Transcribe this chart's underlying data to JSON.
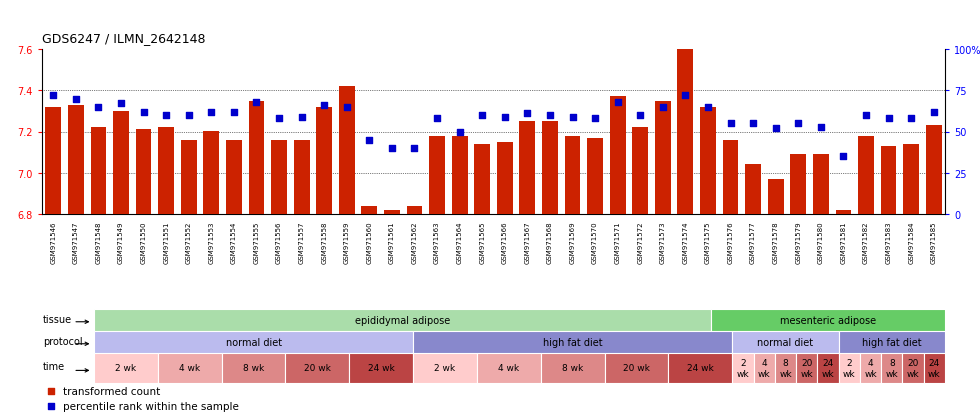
{
  "title": "GDS6247 / ILMN_2642148",
  "ylim": [
    6.8,
    7.6
  ],
  "yticks_left": [
    6.8,
    7.0,
    7.2,
    7.4,
    7.6
  ],
  "yticks_right": [
    0,
    25,
    50,
    75,
    100
  ],
  "samples": [
    "GSM971546",
    "GSM971547",
    "GSM971548",
    "GSM971549",
    "GSM971550",
    "GSM971551",
    "GSM971552",
    "GSM971553",
    "GSM971554",
    "GSM971555",
    "GSM971556",
    "GSM971557",
    "GSM971558",
    "GSM971559",
    "GSM971560",
    "GSM971561",
    "GSM971562",
    "GSM971563",
    "GSM971564",
    "GSM971565",
    "GSM971566",
    "GSM971567",
    "GSM971568",
    "GSM971569",
    "GSM971570",
    "GSM971571",
    "GSM971572",
    "GSM971573",
    "GSM971574",
    "GSM971575",
    "GSM971576",
    "GSM971577",
    "GSM971578",
    "GSM971579",
    "GSM971580",
    "GSM971581",
    "GSM971582",
    "GSM971583",
    "GSM971584",
    "GSM971585"
  ],
  "bar_values": [
    7.32,
    7.33,
    7.22,
    7.3,
    7.21,
    7.22,
    7.16,
    7.2,
    7.16,
    7.35,
    7.16,
    7.16,
    7.32,
    7.42,
    6.84,
    6.82,
    6.84,
    7.18,
    7.18,
    7.14,
    7.15,
    7.25,
    7.25,
    7.18,
    7.17,
    7.37,
    7.22,
    7.35,
    7.6,
    7.32,
    7.16,
    7.04,
    6.97,
    7.09,
    7.09,
    6.82,
    7.18,
    7.13,
    7.14,
    7.23
  ],
  "percentile_values": [
    72,
    70,
    65,
    67,
    62,
    60,
    60,
    62,
    62,
    68,
    58,
    59,
    66,
    65,
    45,
    40,
    40,
    58,
    50,
    60,
    59,
    61,
    60,
    59,
    58,
    68,
    60,
    65,
    72,
    65,
    55,
    55,
    52,
    55,
    53,
    35,
    60,
    58,
    58,
    62
  ],
  "bar_color": "#CC2200",
  "dot_color": "#0000CC",
  "base_value": 6.8,
  "tissue_row": [
    {
      "label": "epididymal adipose",
      "start": 0,
      "end": 29,
      "color": "#AADDAA"
    },
    {
      "label": "mesenteric adipose",
      "start": 29,
      "end": 40,
      "color": "#66CC66"
    }
  ],
  "protocol_row": [
    {
      "label": "normal diet",
      "start": 0,
      "end": 15,
      "color": "#BBBBEE"
    },
    {
      "label": "high fat diet",
      "start": 15,
      "end": 30,
      "color": "#8888CC"
    },
    {
      "label": "normal diet",
      "start": 30,
      "end": 35,
      "color": "#BBBBEE"
    },
    {
      "label": "high fat diet",
      "start": 35,
      "end": 40,
      "color": "#8888CC"
    }
  ],
  "time_row": [
    {
      "label": "2 wk",
      "start": 0,
      "end": 3,
      "color": "#FFCCCC"
    },
    {
      "label": "4 wk",
      "start": 3,
      "end": 6,
      "color": "#EEAAAA"
    },
    {
      "label": "8 wk",
      "start": 6,
      "end": 9,
      "color": "#DD8888"
    },
    {
      "label": "20 wk",
      "start": 9,
      "end": 12,
      "color": "#CC6666"
    },
    {
      "label": "24 wk",
      "start": 12,
      "end": 15,
      "color": "#BB4444"
    },
    {
      "label": "2 wk",
      "start": 15,
      "end": 18,
      "color": "#FFCCCC"
    },
    {
      "label": "4 wk",
      "start": 18,
      "end": 21,
      "color": "#EEAAAA"
    },
    {
      "label": "8 wk",
      "start": 21,
      "end": 24,
      "color": "#DD8888"
    },
    {
      "label": "20 wk",
      "start": 24,
      "end": 27,
      "color": "#CC6666"
    },
    {
      "label": "24 wk",
      "start": 27,
      "end": 30,
      "color": "#BB4444"
    },
    {
      "label": "2\nwk",
      "start": 30,
      "end": 31,
      "color": "#FFCCCC"
    },
    {
      "label": "4\nwk",
      "start": 31,
      "end": 32,
      "color": "#EEAAAA"
    },
    {
      "label": "8\nwk",
      "start": 32,
      "end": 33,
      "color": "#DD8888"
    },
    {
      "label": "20\nwk",
      "start": 33,
      "end": 34,
      "color": "#CC6666"
    },
    {
      "label": "24\nwk",
      "start": 34,
      "end": 35,
      "color": "#BB4444"
    },
    {
      "label": "2\nwk",
      "start": 35,
      "end": 36,
      "color": "#FFCCCC"
    },
    {
      "label": "4\nwk",
      "start": 36,
      "end": 37,
      "color": "#EEAAAA"
    },
    {
      "label": "8\nwk",
      "start": 37,
      "end": 38,
      "color": "#DD8888"
    },
    {
      "label": "20\nwk",
      "start": 38,
      "end": 39,
      "color": "#CC6666"
    },
    {
      "label": "24\nwk",
      "start": 39,
      "end": 40,
      "color": "#BB4444"
    }
  ],
  "legend_items": [
    {
      "label": "transformed count",
      "color": "#CC2200"
    },
    {
      "label": "percentile rank within the sample",
      "color": "#0000CC"
    }
  ]
}
